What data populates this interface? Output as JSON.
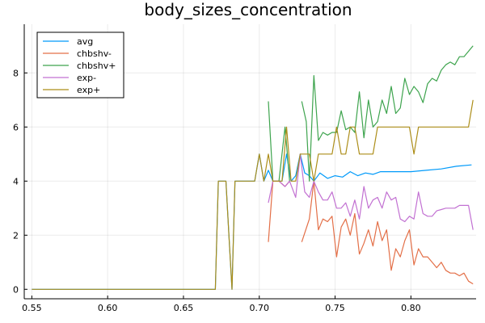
{
  "chart_data": {
    "type": "line",
    "title": "body_sizes_concentration",
    "xlabel": "",
    "ylabel": "",
    "xlim": [
      0.545,
      0.843
    ],
    "ylim": [
      -0.35,
      9.8
    ],
    "grid": true,
    "legend_position": "top-left",
    "xticks": [
      0.55,
      0.6,
      0.65,
      0.7,
      0.75,
      0.8
    ],
    "xtick_labels": [
      "0.55",
      "0.60",
      "0.65",
      "0.70",
      "0.75",
      "0.80"
    ],
    "yticks": [
      0,
      2,
      4,
      6,
      8
    ],
    "ytick_labels": [
      "0",
      "2",
      "4",
      "6",
      "8"
    ],
    "series": [
      {
        "name": "avg",
        "color": "#009AFA",
        "points": [
          [
            0.55,
            0
          ],
          [
            0.671,
            0
          ],
          [
            0.673,
            4
          ],
          [
            0.678,
            4
          ],
          [
            0.68,
            2
          ],
          [
            0.682,
            0
          ],
          [
            0.684,
            4
          ],
          [
            0.697,
            4
          ],
          [
            0.7,
            5
          ],
          [
            0.703,
            4
          ],
          [
            0.706,
            4.4
          ],
          [
            0.709,
            4
          ],
          [
            0.715,
            4
          ],
          [
            0.718,
            5
          ],
          [
            0.721,
            4
          ],
          [
            0.724,
            4.2
          ],
          [
            0.727,
            5
          ],
          [
            0.73,
            4.3
          ],
          [
            0.733,
            4.2
          ],
          [
            0.736,
            4.0
          ],
          [
            0.74,
            4.3
          ],
          [
            0.745,
            4.1
          ],
          [
            0.75,
            4.2
          ],
          [
            0.755,
            4.15
          ],
          [
            0.76,
            4.35
          ],
          [
            0.765,
            4.2
          ],
          [
            0.77,
            4.3
          ],
          [
            0.775,
            4.25
          ],
          [
            0.78,
            4.35
          ],
          [
            0.79,
            4.35
          ],
          [
            0.8,
            4.35
          ],
          [
            0.81,
            4.4
          ],
          [
            0.82,
            4.45
          ],
          [
            0.83,
            4.55
          ],
          [
            0.84,
            4.6
          ]
        ]
      },
      {
        "name": "chbshv-",
        "color": "#E36F47",
        "segments": [
          [
            [
              0.706,
              1.75
            ],
            [
              0.709,
              4.0
            ],
            [
              0.713,
              4.0
            ],
            [
              0.717,
              3.8
            ],
            [
              0.72,
              4.0
            ]
          ],
          [
            [
              0.728,
              1.75
            ],
            [
              0.733,
              2.6
            ],
            [
              0.736,
              4.0
            ],
            [
              0.739,
              2.2
            ],
            [
              0.742,
              2.6
            ],
            [
              0.745,
              2.5
            ],
            [
              0.748,
              2.7
            ],
            [
              0.751,
              1.2
            ],
            [
              0.754,
              2.3
            ],
            [
              0.757,
              2.6
            ],
            [
              0.76,
              2.0
            ],
            [
              0.763,
              2.8
            ],
            [
              0.766,
              1.3
            ],
            [
              0.769,
              1.7
            ],
            [
              0.772,
              2.2
            ],
            [
              0.775,
              1.6
            ],
            [
              0.778,
              2.5
            ],
            [
              0.781,
              1.8
            ],
            [
              0.784,
              2.2
            ],
            [
              0.787,
              0.7
            ],
            [
              0.79,
              1.5
            ],
            [
              0.793,
              1.2
            ],
            [
              0.796,
              1.8
            ],
            [
              0.799,
              2.2
            ],
            [
              0.802,
              0.9
            ],
            [
              0.805,
              1.5
            ],
            [
              0.808,
              1.2
            ],
            [
              0.811,
              1.2
            ],
            [
              0.814,
              1.0
            ],
            [
              0.817,
              0.8
            ],
            [
              0.82,
              1.0
            ],
            [
              0.823,
              0.7
            ],
            [
              0.826,
              0.6
            ],
            [
              0.829,
              0.6
            ],
            [
              0.832,
              0.5
            ],
            [
              0.835,
              0.6
            ],
            [
              0.838,
              0.3
            ],
            [
              0.841,
              0.2
            ]
          ]
        ]
      },
      {
        "name": "chbshv+",
        "color": "#3EA44E",
        "segments": [
          [
            [
              0.706,
              6.95
            ],
            [
              0.709,
              4.0
            ],
            [
              0.713,
              4.0
            ],
            [
              0.717,
              6.0
            ],
            [
              0.72,
              4.0
            ]
          ],
          [
            [
              0.728,
              6.95
            ],
            [
              0.731,
              6.2
            ],
            [
              0.733,
              4.0
            ],
            [
              0.736,
              7.9
            ],
            [
              0.739,
              5.5
            ],
            [
              0.742,
              5.8
            ],
            [
              0.745,
              5.7
            ],
            [
              0.748,
              5.8
            ],
            [
              0.751,
              5.8
            ],
            [
              0.754,
              6.6
            ],
            [
              0.757,
              5.9
            ],
            [
              0.76,
              6.0
            ],
            [
              0.763,
              5.8
            ],
            [
              0.766,
              7.3
            ],
            [
              0.769,
              5.6
            ],
            [
              0.772,
              7.0
            ],
            [
              0.775,
              6.0
            ],
            [
              0.778,
              6.2
            ],
            [
              0.781,
              7.0
            ],
            [
              0.784,
              6.5
            ],
            [
              0.787,
              7.5
            ],
            [
              0.79,
              6.5
            ],
            [
              0.793,
              6.7
            ],
            [
              0.796,
              7.8
            ],
            [
              0.799,
              7.2
            ],
            [
              0.802,
              7.5
            ],
            [
              0.805,
              7.3
            ],
            [
              0.808,
              6.9
            ],
            [
              0.811,
              7.6
            ],
            [
              0.814,
              7.8
            ],
            [
              0.817,
              7.7
            ],
            [
              0.82,
              8.1
            ],
            [
              0.823,
              8.3
            ],
            [
              0.826,
              8.4
            ],
            [
              0.829,
              8.3
            ],
            [
              0.832,
              8.6
            ],
            [
              0.835,
              8.6
            ],
            [
              0.838,
              8.8
            ],
            [
              0.841,
              9.0
            ]
          ]
        ]
      },
      {
        "name": "exp-",
        "color": "#C271D2",
        "segments": [
          [
            [
              0.706,
              3.2
            ],
            [
              0.709,
              4.0
            ],
            [
              0.713,
              4.0
            ],
            [
              0.717,
              3.8
            ],
            [
              0.72,
              4.0
            ],
            [
              0.724,
              3.4
            ],
            [
              0.727,
              5.0
            ],
            [
              0.73,
              3.6
            ],
            [
              0.733,
              3.4
            ],
            [
              0.736,
              4.0
            ],
            [
              0.739,
              3.6
            ],
            [
              0.742,
              3.3
            ],
            [
              0.745,
              3.3
            ],
            [
              0.748,
              3.6
            ],
            [
              0.751,
              3.0
            ],
            [
              0.754,
              3.0
            ],
            [
              0.757,
              3.2
            ],
            [
              0.76,
              2.7
            ],
            [
              0.763,
              3.3
            ],
            [
              0.766,
              2.6
            ],
            [
              0.769,
              3.8
            ],
            [
              0.772,
              3.0
            ],
            [
              0.775,
              3.3
            ],
            [
              0.778,
              3.4
            ],
            [
              0.781,
              3.0
            ],
            [
              0.784,
              3.6
            ],
            [
              0.787,
              3.3
            ],
            [
              0.79,
              3.4
            ],
            [
              0.793,
              2.6
            ],
            [
              0.796,
              2.5
            ],
            [
              0.799,
              2.7
            ],
            [
              0.802,
              2.6
            ],
            [
              0.805,
              3.6
            ],
            [
              0.808,
              2.8
            ],
            [
              0.811,
              2.7
            ],
            [
              0.814,
              2.7
            ],
            [
              0.817,
              2.9
            ],
            [
              0.82,
              2.95
            ],
            [
              0.823,
              3.0
            ],
            [
              0.826,
              3.0
            ],
            [
              0.829,
              3.0
            ],
            [
              0.832,
              3.1
            ],
            [
              0.835,
              3.1
            ],
            [
              0.838,
              3.1
            ],
            [
              0.841,
              2.2
            ]
          ]
        ]
      },
      {
        "name": "exp+",
        "color": "#AC8D18",
        "points": [
          [
            0.55,
            0
          ],
          [
            0.671,
            0
          ],
          [
            0.673,
            4
          ],
          [
            0.678,
            4
          ],
          [
            0.68,
            2
          ],
          [
            0.682,
            0
          ],
          [
            0.684,
            4
          ],
          [
            0.697,
            4
          ],
          [
            0.7,
            5
          ],
          [
            0.703,
            4
          ],
          [
            0.706,
            5
          ],
          [
            0.709,
            4
          ],
          [
            0.715,
            4
          ],
          [
            0.718,
            6
          ],
          [
            0.721,
            4
          ],
          [
            0.724,
            4
          ],
          [
            0.727,
            5
          ],
          [
            0.73,
            5
          ],
          [
            0.733,
            5
          ],
          [
            0.736,
            4
          ],
          [
            0.739,
            5
          ],
          [
            0.742,
            5
          ],
          [
            0.745,
            5
          ],
          [
            0.748,
            5
          ],
          [
            0.751,
            6
          ],
          [
            0.754,
            5
          ],
          [
            0.757,
            5
          ],
          [
            0.76,
            6
          ],
          [
            0.763,
            6
          ],
          [
            0.766,
            5
          ],
          [
            0.769,
            5
          ],
          [
            0.772,
            5
          ],
          [
            0.775,
            5
          ],
          [
            0.778,
            6
          ],
          [
            0.781,
            6
          ],
          [
            0.784,
            6
          ],
          [
            0.787,
            6
          ],
          [
            0.79,
            6
          ],
          [
            0.793,
            6
          ],
          [
            0.796,
            6
          ],
          [
            0.799,
            6
          ],
          [
            0.802,
            5
          ],
          [
            0.805,
            6
          ],
          [
            0.808,
            6
          ],
          [
            0.811,
            6
          ],
          [
            0.814,
            6
          ],
          [
            0.817,
            6
          ],
          [
            0.82,
            6
          ],
          [
            0.823,
            6
          ],
          [
            0.826,
            6
          ],
          [
            0.829,
            6
          ],
          [
            0.832,
            6
          ],
          [
            0.835,
            6
          ],
          [
            0.838,
            6
          ],
          [
            0.841,
            7
          ]
        ]
      }
    ]
  }
}
